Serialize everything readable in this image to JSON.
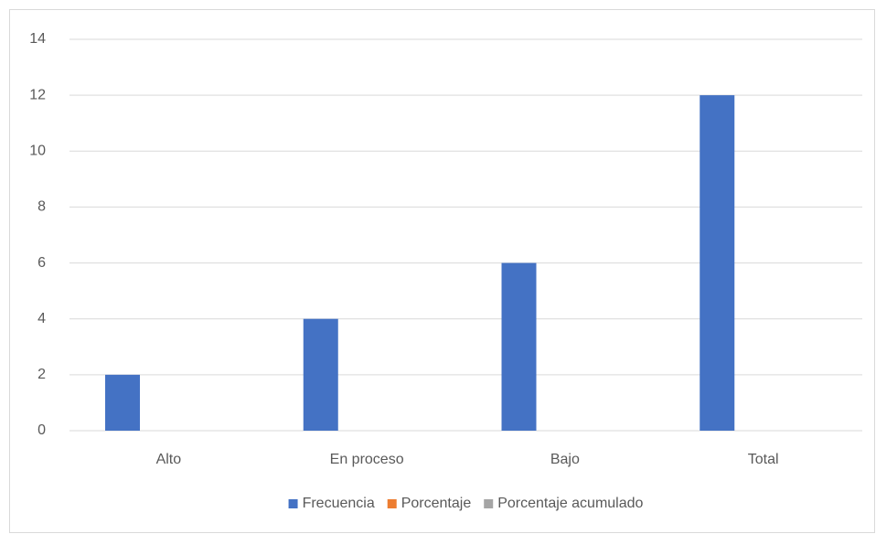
{
  "chart_data": {
    "type": "bar",
    "categories": [
      "Alto",
      "En proceso",
      "Bajo",
      "Total"
    ],
    "series": [
      {
        "name": "Frecuencia",
        "color": "#4472c4",
        "values": [
          2,
          4,
          6,
          12
        ]
      },
      {
        "name": "Porcentaje",
        "color": "#ed7d31",
        "values": [
          0,
          0,
          0,
          0
        ]
      },
      {
        "name": "Porcentaje acumulado",
        "color": "#a5a5a5",
        "values": [
          0,
          0,
          0,
          0
        ]
      }
    ],
    "ylim": [
      0,
      14
    ],
    "yticks": [
      0,
      2,
      4,
      6,
      8,
      10,
      12,
      14
    ],
    "grid": true,
    "legend": "bottom"
  }
}
